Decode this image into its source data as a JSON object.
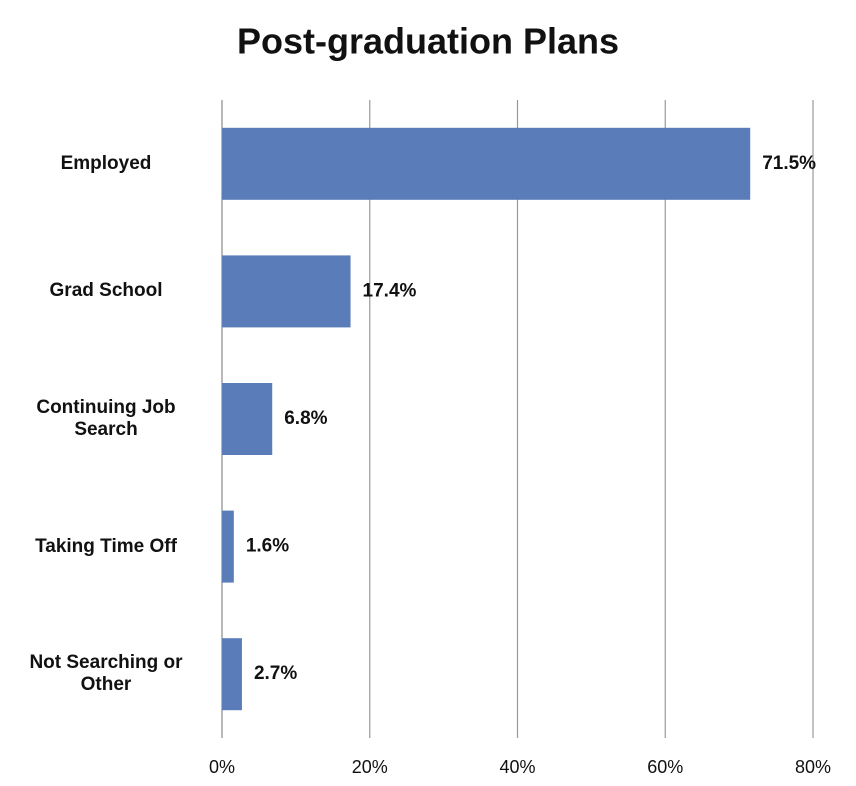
{
  "chart_data": {
    "type": "bar",
    "orientation": "horizontal",
    "title": "Post-graduation Plans",
    "categories": [
      "Employed",
      "Grad School",
      "Continuing Job Search",
      "Taking Time Off",
      "Not Searching or Other"
    ],
    "values": [
      71.5,
      17.4,
      6.8,
      1.6,
      2.7
    ],
    "value_labels": [
      "71.5%",
      "17.4%",
      "6.8%",
      "1.6%",
      "2.7%"
    ],
    "color": "#5a7db9",
    "xlim": [
      0,
      80
    ],
    "xticks": [
      {
        "value": 0,
        "label": "0%"
      },
      {
        "value": 20,
        "label": "20%"
      },
      {
        "value": 40,
        "label": "40%"
      },
      {
        "value": 60,
        "label": "60%"
      },
      {
        "value": 80,
        "label": "80%"
      }
    ],
    "grid": true
  }
}
